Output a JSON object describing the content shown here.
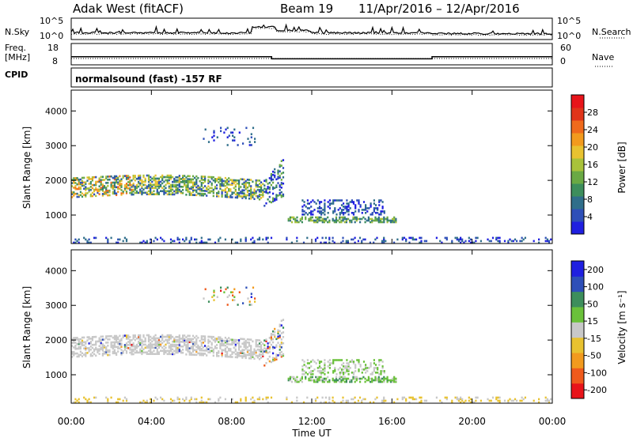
{
  "header": {
    "title": "Adak West (fitACF)",
    "beam": "Beam 19",
    "dates": "11/Apr/2016 – 12/Apr/2016"
  },
  "left_labels": {
    "nsky": "N.Sky",
    "freq": "Freq.",
    "mhz": "[MHz]",
    "cpid": "CPID"
  },
  "right_labels": {
    "nsearch": "N.Search",
    "nave": "Nave"
  },
  "mode_text": "normalsound (fast) -157 RF",
  "colors": {
    "power_scale": [
      "#1f1fe0",
      "#2e4fb8",
      "#2f6e8a",
      "#3d8e5c",
      "#6aa944",
      "#a9c23a",
      "#e8c230",
      "#f29a1e",
      "#ef6a1c",
      "#e0341a",
      "#e8141a"
    ],
    "velocity_scale": [
      "#e8141a",
      "#ef5a1c",
      "#f29a1e",
      "#e8c230",
      "#c8c8c8",
      "#6ac13a",
      "#3d8e5c",
      "#2e4fb8",
      "#1f1fe0"
    ]
  },
  "chart_data": [
    {
      "type": "line",
      "panel": "noise",
      "ylabel": "N.Sky",
      "y2label": "N.Search",
      "yticks": [
        "10^5",
        "10^0"
      ],
      "y2ticks": [
        "10^5",
        "10^0"
      ]
    },
    {
      "type": "line",
      "panel": "frequency",
      "ylabel": "Freq. [MHz]",
      "y2label": "Nave",
      "yticks": [
        18,
        8
      ],
      "y2ticks": [
        60,
        0
      ],
      "freq_segments_hours": [
        [
          0,
          10,
          11.8
        ],
        [
          10,
          18,
          10.8
        ],
        [
          18,
          24,
          11.8
        ]
      ]
    },
    {
      "type": "heatmap",
      "panel": "power",
      "xlabel": "",
      "ylabel": "Slant Range [km]",
      "yticks": [
        1000,
        2000,
        3000,
        4000
      ],
      "ylim": [
        180,
        4600
      ],
      "colorbar_label": "Power [dB]",
      "colorbar_ticks": [
        4,
        8,
        12,
        16,
        20,
        24,
        28
      ],
      "colorbar_range": [
        0,
        32
      ]
    },
    {
      "type": "heatmap",
      "panel": "velocity",
      "xlabel": "Time UT",
      "ylabel": "Slant Range [km]",
      "yticks": [
        1000,
        2000,
        3000,
        4000
      ],
      "ylim": [
        180,
        4600
      ],
      "xticks": [
        "00:00",
        "04:00",
        "08:00",
        "12:00",
        "16:00",
        "20:00",
        "00:00"
      ],
      "colorbar_label": "Velocity [m s⁻¹]",
      "colorbar_ticks": [
        200,
        100,
        50,
        15,
        -15,
        -50,
        -100,
        -200
      ]
    }
  ]
}
